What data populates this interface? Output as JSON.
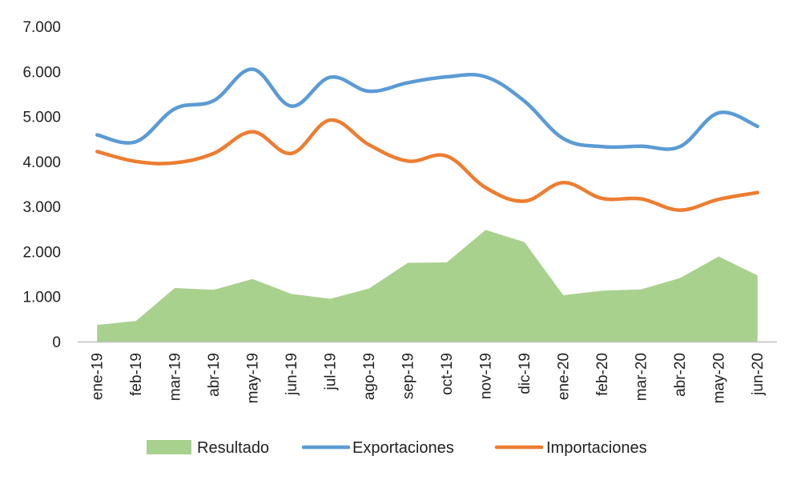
{
  "chart_data": {
    "type": "line",
    "categories": [
      "ene-19",
      "feb-19",
      "mar-19",
      "abr-19",
      "may-19",
      "jun-19",
      "jul-19",
      "ago-19",
      "sep-19",
      "oct-19",
      "nov-19",
      "dic-19",
      "ene-20",
      "feb-20",
      "mar-20",
      "abr-20",
      "may-20",
      "jun-20"
    ],
    "series": [
      {
        "name": "Resultado",
        "kind": "area",
        "color": "#a9d18e",
        "values": [
          370,
          460,
          1190,
          1150,
          1390,
          1060,
          950,
          1180,
          1750,
          1760,
          2480,
          2210,
          1030,
          1130,
          1160,
          1410,
          1890,
          1470
        ]
      },
      {
        "name": "Exportaciones",
        "kind": "line",
        "color": "#5b9bd5",
        "values": [
          4590,
          4440,
          5170,
          5350,
          6050,
          5230,
          5870,
          5560,
          5750,
          5880,
          5880,
          5340,
          4510,
          4330,
          4340,
          4330,
          5080,
          4780
        ]
      },
      {
        "name": "Importaciones",
        "kind": "line",
        "color": "#ed7d31",
        "values": [
          4220,
          4000,
          3970,
          4180,
          4660,
          4180,
          4920,
          4370,
          4010,
          4120,
          3420,
          3120,
          3530,
          3180,
          3170,
          2920,
          3160,
          3310
        ]
      }
    ],
    "yticks": [
      "0",
      "1.000",
      "2.000",
      "3.000",
      "4.000",
      "5.000",
      "6.000",
      "7.000"
    ],
    "ylim": [
      0,
      7000
    ],
    "grid": false,
    "legend": "bottom",
    "title": "",
    "xlabel": "",
    "ylabel": ""
  }
}
